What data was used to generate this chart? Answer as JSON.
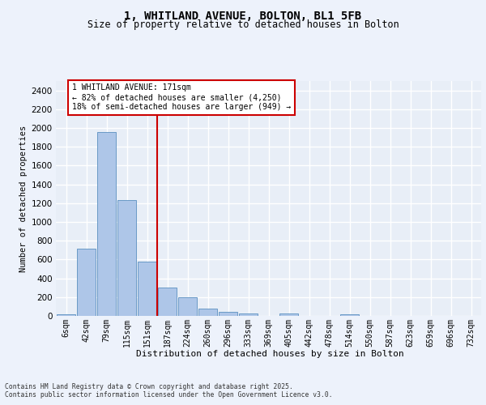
{
  "title_line1": "1, WHITLAND AVENUE, BOLTON, BL1 5FB",
  "title_line2": "Size of property relative to detached houses in Bolton",
  "xlabel": "Distribution of detached houses by size in Bolton",
  "ylabel": "Number of detached properties",
  "bin_labels": [
    "6sqm",
    "42sqm",
    "79sqm",
    "115sqm",
    "151sqm",
    "187sqm",
    "224sqm",
    "260sqm",
    "296sqm",
    "333sqm",
    "369sqm",
    "405sqm",
    "442sqm",
    "478sqm",
    "514sqm",
    "550sqm",
    "587sqm",
    "623sqm",
    "659sqm",
    "696sqm",
    "732sqm"
  ],
  "bar_heights": [
    15,
    715,
    1960,
    1235,
    575,
    305,
    200,
    80,
    40,
    30,
    0,
    30,
    0,
    0,
    15,
    0,
    0,
    0,
    0,
    0,
    0
  ],
  "bar_color": "#aec6e8",
  "bar_edge_color": "#5a8fc0",
  "annotation_text_line1": "1 WHITLAND AVENUE: 171sqm",
  "annotation_text_line2": "← 82% of detached houses are smaller (4,250)",
  "annotation_text_line3": "18% of semi-detached houses are larger (949) →",
  "vline_color": "#cc0000",
  "annotation_box_color": "#ffffff",
  "annotation_box_edge": "#cc0000",
  "background_color": "#e8eef7",
  "fig_background_color": "#edf2fb",
  "grid_color": "#ffffff",
  "ylim": [
    0,
    2500
  ],
  "yticks": [
    0,
    200,
    400,
    600,
    800,
    1000,
    1200,
    1400,
    1600,
    1800,
    2000,
    2200,
    2400
  ],
  "footnote": "Contains HM Land Registry data © Crown copyright and database right 2025.\nContains public sector information licensed under the Open Government Licence v3.0."
}
